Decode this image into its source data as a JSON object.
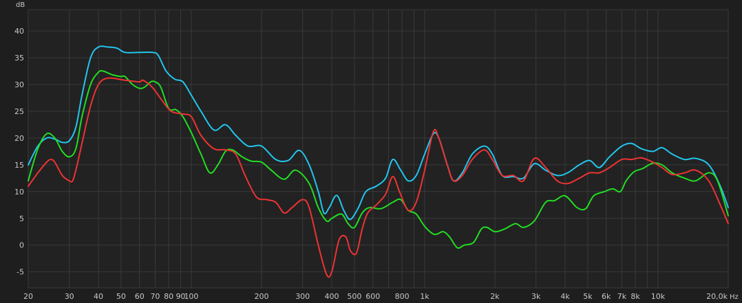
{
  "chart_data": {
    "type": "line",
    "ylabel": "dB",
    "xlabel": "Hz",
    "xscale": "log",
    "xlim": [
      20,
      20000
    ],
    "ylim": [
      -8,
      44
    ],
    "grid": true,
    "colors": {
      "background": "#1e1e1e",
      "plot": "#222222",
      "grid": "#3a3a3a",
      "text": "#c8c8c8"
    },
    "y_ticks": [
      {
        "value": 40,
        "label": "40"
      },
      {
        "value": 35,
        "label": "35"
      },
      {
        "value": 30,
        "label": "30"
      },
      {
        "value": 25,
        "label": "25"
      },
      {
        "value": 20,
        "label": "20"
      },
      {
        "value": 15,
        "label": "15"
      },
      {
        "value": 10,
        "label": "10"
      },
      {
        "value": 5,
        "label": "5"
      },
      {
        "value": 0,
        "label": "0"
      },
      {
        "value": -5,
        "label": "-5"
      }
    ],
    "x_ticks": [
      {
        "value": 20,
        "label": "20"
      },
      {
        "value": 30,
        "label": "30"
      },
      {
        "value": 40,
        "label": "40"
      },
      {
        "value": 50,
        "label": "50"
      },
      {
        "value": 60,
        "label": "60"
      },
      {
        "value": 70,
        "label": "70"
      },
      {
        "value": 80,
        "label": "80"
      },
      {
        "value": 90,
        "label": "90"
      },
      {
        "value": 100,
        "label": "100"
      },
      {
        "value": 200,
        "label": "200"
      },
      {
        "value": 300,
        "label": "300"
      },
      {
        "value": 400,
        "label": "400"
      },
      {
        "value": 500,
        "label": "500"
      },
      {
        "value": 600,
        "label": "600"
      },
      {
        "value": 800,
        "label": "800"
      },
      {
        "value": 1000,
        "label": "1k"
      },
      {
        "value": 2000,
        "label": "2k"
      },
      {
        "value": 3000,
        "label": "3k"
      },
      {
        "value": 4000,
        "label": "4k"
      },
      {
        "value": 5000,
        "label": "5k"
      },
      {
        "value": 6000,
        "label": "6k"
      },
      {
        "value": 7000,
        "label": "7k"
      },
      {
        "value": 8000,
        "label": "8k"
      },
      {
        "value": 10000,
        "label": "10k"
      },
      {
        "value": 20000,
        "label": "20,0k"
      }
    ],
    "series": [
      {
        "color": "#22c6ee",
        "points": [
          [
            20,
            15
          ],
          [
            22,
            18.5
          ],
          [
            24,
            20
          ],
          [
            26,
            19.8
          ],
          [
            28,
            19.2
          ],
          [
            30,
            19.5
          ],
          [
            32,
            22
          ],
          [
            34,
            28
          ],
          [
            37,
            35
          ],
          [
            40,
            37
          ],
          [
            44,
            37
          ],
          [
            48,
            36.8
          ],
          [
            52,
            36
          ],
          [
            60,
            36
          ],
          [
            68,
            36
          ],
          [
            72,
            35.5
          ],
          [
            78,
            32.5
          ],
          [
            85,
            31
          ],
          [
            92,
            30.5
          ],
          [
            100,
            28
          ],
          [
            110,
            25
          ],
          [
            125,
            21.5
          ],
          [
            140,
            22.5
          ],
          [
            155,
            20.5
          ],
          [
            175,
            18.5
          ],
          [
            200,
            18.5
          ],
          [
            230,
            16
          ],
          [
            260,
            15.8
          ],
          [
            290,
            17.7
          ],
          [
            320,
            15
          ],
          [
            350,
            10
          ],
          [
            370,
            6
          ],
          [
            390,
            7
          ],
          [
            420,
            9.3
          ],
          [
            450,
            6.5
          ],
          [
            480,
            4.8
          ],
          [
            520,
            7
          ],
          [
            560,
            10
          ],
          [
            620,
            11
          ],
          [
            680,
            12.5
          ],
          [
            730,
            16
          ],
          [
            790,
            14
          ],
          [
            850,
            12
          ],
          [
            920,
            13
          ],
          [
            1000,
            17
          ],
          [
            1090,
            20.8
          ],
          [
            1150,
            20
          ],
          [
            1250,
            15
          ],
          [
            1330,
            12
          ],
          [
            1450,
            13.5
          ],
          [
            1600,
            17
          ],
          [
            1800,
            18.5
          ],
          [
            1950,
            17
          ],
          [
            2150,
            13
          ],
          [
            2400,
            12.8
          ],
          [
            2650,
            12.5
          ],
          [
            2950,
            15.2
          ],
          [
            3300,
            14
          ],
          [
            3700,
            13
          ],
          [
            4100,
            13.5
          ],
          [
            4600,
            15
          ],
          [
            5100,
            15.8
          ],
          [
            5600,
            14.5
          ],
          [
            6200,
            16.5
          ],
          [
            7000,
            18.5
          ],
          [
            7700,
            19
          ],
          [
            8500,
            18
          ],
          [
            9500,
            17.5
          ],
          [
            10400,
            18.2
          ],
          [
            11500,
            17
          ],
          [
            13000,
            16
          ],
          [
            14500,
            16.2
          ],
          [
            16500,
            15
          ],
          [
            18500,
            11
          ],
          [
            20000,
            7
          ]
        ]
      },
      {
        "color": "#22dd22",
        "points": [
          [
            20,
            12
          ],
          [
            22,
            18
          ],
          [
            24,
            20.8
          ],
          [
            26,
            20
          ],
          [
            28,
            17.5
          ],
          [
            30,
            16.5
          ],
          [
            32,
            18
          ],
          [
            34,
            24
          ],
          [
            37,
            30
          ],
          [
            40,
            32.3
          ],
          [
            42,
            32.5
          ],
          [
            46,
            31.8
          ],
          [
            50,
            31.5
          ],
          [
            52,
            31.5
          ],
          [
            56,
            30
          ],
          [
            60,
            29.3
          ],
          [
            63,
            29.5
          ],
          [
            67,
            30.5
          ],
          [
            70,
            30.5
          ],
          [
            74,
            29.5
          ],
          [
            80,
            25.5
          ],
          [
            86,
            25.3
          ],
          [
            92,
            24
          ],
          [
            100,
            21
          ],
          [
            110,
            17
          ],
          [
            120,
            13.5
          ],
          [
            130,
            15
          ],
          [
            140,
            17.5
          ],
          [
            150,
            17.8
          ],
          [
            165,
            16.5
          ],
          [
            180,
            15.7
          ],
          [
            200,
            15.5
          ],
          [
            220,
            14
          ],
          [
            250,
            12.3
          ],
          [
            280,
            14
          ],
          [
            320,
            11.5
          ],
          [
            350,
            7
          ],
          [
            380,
            4.5
          ],
          [
            400,
            5
          ],
          [
            440,
            5.8
          ],
          [
            470,
            4
          ],
          [
            500,
            3.3
          ],
          [
            540,
            6
          ],
          [
            580,
            7
          ],
          [
            650,
            6.8
          ],
          [
            730,
            8
          ],
          [
            790,
            8.5
          ],
          [
            850,
            6.5
          ],
          [
            920,
            5.8
          ],
          [
            1000,
            3.5
          ],
          [
            1100,
            2
          ],
          [
            1200,
            2.5
          ],
          [
            1280,
            1.5
          ],
          [
            1380,
            -0.5
          ],
          [
            1480,
            0
          ],
          [
            1620,
            0.5
          ],
          [
            1750,
            3
          ],
          [
            1850,
            3.3
          ],
          [
            2000,
            2.5
          ],
          [
            2200,
            3
          ],
          [
            2450,
            4
          ],
          [
            2650,
            3.3
          ],
          [
            2950,
            4.5
          ],
          [
            3300,
            8
          ],
          [
            3600,
            8.3
          ],
          [
            4000,
            9.2
          ],
          [
            4500,
            7
          ],
          [
            4900,
            6.8
          ],
          [
            5300,
            9.2
          ],
          [
            5900,
            10
          ],
          [
            6400,
            10.5
          ],
          [
            6900,
            10
          ],
          [
            7300,
            12
          ],
          [
            7900,
            13.7
          ],
          [
            8600,
            14.3
          ],
          [
            9500,
            15.3
          ],
          [
            10400,
            15
          ],
          [
            11500,
            13.5
          ],
          [
            13000,
            12.5
          ],
          [
            14500,
            12
          ],
          [
            16500,
            13.5
          ],
          [
            18000,
            12
          ],
          [
            20000,
            5.5
          ]
        ]
      },
      {
        "color": "#ee3333",
        "points": [
          [
            20,
            11
          ],
          [
            22,
            13.5
          ],
          [
            24,
            15.5
          ],
          [
            25,
            16
          ],
          [
            26,
            15.5
          ],
          [
            28,
            13
          ],
          [
            30,
            12
          ],
          [
            31,
            12
          ],
          [
            32,
            14
          ],
          [
            34,
            19
          ],
          [
            37,
            26
          ],
          [
            40,
            30
          ],
          [
            44,
            31.2
          ],
          [
            52,
            30.8
          ],
          [
            60,
            30.5
          ],
          [
            62,
            30.8
          ],
          [
            68,
            29.5
          ],
          [
            75,
            27
          ],
          [
            82,
            25
          ],
          [
            92,
            24.5
          ],
          [
            100,
            24
          ],
          [
            110,
            20.5
          ],
          [
            125,
            18
          ],
          [
            140,
            17.8
          ],
          [
            155,
            17
          ],
          [
            170,
            13
          ],
          [
            190,
            9
          ],
          [
            210,
            8.5
          ],
          [
            230,
            8
          ],
          [
            250,
            6
          ],
          [
            270,
            7
          ],
          [
            300,
            8.5
          ],
          [
            320,
            7
          ],
          [
            350,
            0
          ],
          [
            380,
            -5.5
          ],
          [
            400,
            -5
          ],
          [
            430,
            1
          ],
          [
            460,
            1.5
          ],
          [
            480,
            -1
          ],
          [
            510,
            -1.5
          ],
          [
            540,
            3
          ],
          [
            570,
            6
          ],
          [
            620,
            7.5
          ],
          [
            680,
            9.5
          ],
          [
            730,
            12.8
          ],
          [
            780,
            10
          ],
          [
            850,
            6.5
          ],
          [
            920,
            8
          ],
          [
            1000,
            14
          ],
          [
            1090,
            21.2
          ],
          [
            1150,
            20
          ],
          [
            1250,
            15
          ],
          [
            1330,
            12
          ],
          [
            1450,
            13
          ],
          [
            1600,
            16
          ],
          [
            1800,
            17.8
          ],
          [
            1950,
            16
          ],
          [
            2150,
            13
          ],
          [
            2400,
            13
          ],
          [
            2650,
            12
          ],
          [
            2950,
            16.2
          ],
          [
            3300,
            14.5
          ],
          [
            3700,
            12
          ],
          [
            4100,
            11.5
          ],
          [
            4600,
            12.5
          ],
          [
            5100,
            13.5
          ],
          [
            5600,
            13.5
          ],
          [
            6200,
            14.5
          ],
          [
            7000,
            16
          ],
          [
            7700,
            16
          ],
          [
            8500,
            16.3
          ],
          [
            9500,
            15.5
          ],
          [
            10400,
            14.5
          ],
          [
            11500,
            13.2
          ],
          [
            13000,
            13.5
          ],
          [
            14500,
            14
          ],
          [
            16500,
            12
          ],
          [
            18500,
            7.5
          ],
          [
            20000,
            4
          ]
        ]
      }
    ]
  }
}
